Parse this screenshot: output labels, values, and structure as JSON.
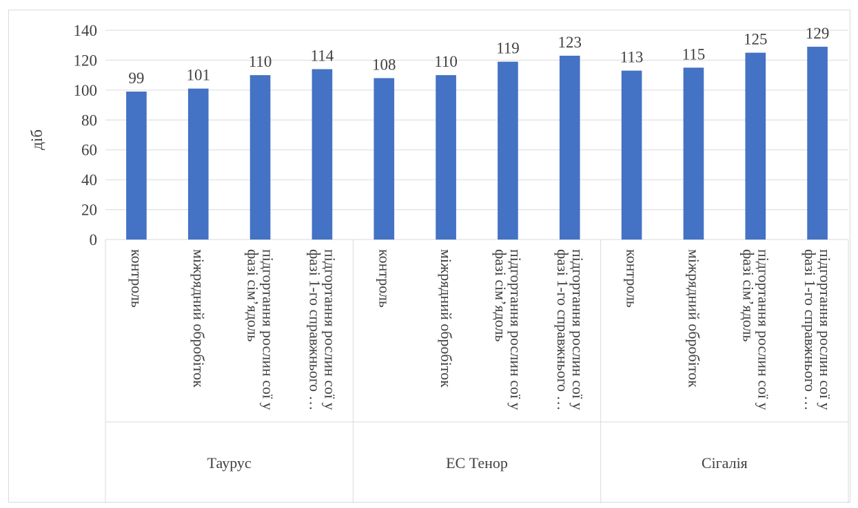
{
  "chart_data": {
    "type": "bar",
    "title": "",
    "ylabel": "діб",
    "xlabel": "",
    "ylim": [
      0,
      140
    ],
    "yticks": [
      0,
      20,
      40,
      60,
      80,
      100,
      120,
      140
    ],
    "grid": true,
    "legend": "none",
    "bar_color": "#4472C4",
    "groups": [
      {
        "name": "Таурус",
        "categories": [
          "контроль",
          "міжрядний обробіток",
          "підгортання рослин сої у фазі сім’ядоль",
          "підгортання рослин сої у фазі 1-го справжнього …"
        ],
        "values": [
          99,
          101,
          110,
          114
        ]
      },
      {
        "name": "ЕС Тенор",
        "categories": [
          "контроль",
          "міжрядний обробіток",
          "підгортання рослин сої у фазі сім’ядоль",
          "підгортання рослин сої у фазі 1-го справжнього …"
        ],
        "values": [
          108,
          110,
          119,
          123
        ]
      },
      {
        "name": "Сігалія",
        "categories": [
          "контроль",
          "міжрядний обробіток",
          "підгортання рослин сої у фазі сім’ядоль",
          "підгортання рослин сої у фазі 1-го справжнього …"
        ],
        "values": [
          113,
          115,
          125,
          129
        ]
      }
    ]
  }
}
